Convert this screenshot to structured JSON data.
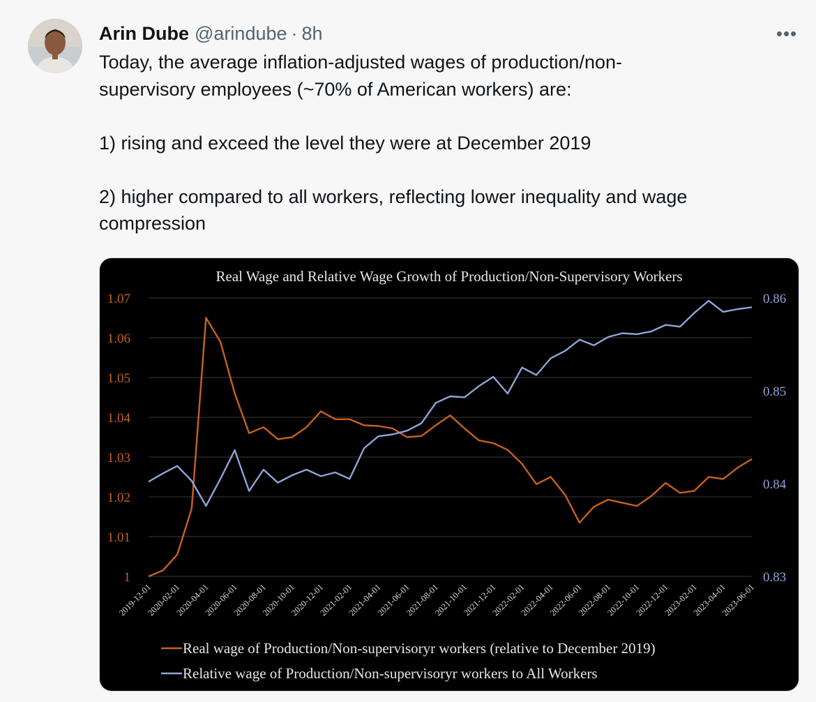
{
  "tweet": {
    "author_name": "Arin Dube",
    "author_handle": "@arindube",
    "separator": "·",
    "time": "8h",
    "more_label": "•••",
    "text_lines": [
      "Today, the average inflation-adjusted wages of production/non-",
      "supervisory employees (~70% of American workers) are:",
      "1) rising and exceed the level they were at December 2019",
      "2) higher compared to all workers, reflecting lower inequality and wage",
      "compression"
    ]
  },
  "colors": {
    "real_wage": "#c8611f",
    "relative_wage": "#8ea5d8",
    "left_axis_text": "#c8611f",
    "right_axis_text": "#8ea5d8"
  },
  "chart_data": {
    "type": "line",
    "title": "Real Wage and Relative Wage Growth of Production/Non-Supervisory Workers",
    "y_left": {
      "min": 1.0,
      "max": 1.07,
      "ticks": [
        "1",
        "1.01",
        "1.02",
        "1.03",
        "1.04",
        "1.05",
        "1.06",
        "1.07"
      ]
    },
    "y_right": {
      "min": 0.83,
      "max": 0.86,
      "ticks": [
        "0.83",
        "0.84",
        "0.85",
        "0.86"
      ]
    },
    "x_tick_labels": [
      "2019-12-01",
      "2020-02-01",
      "2020-04-01",
      "2020-06-01",
      "2020-08-01",
      "2020-10-01",
      "2020-12-01",
      "2021-02-01",
      "2021-04-01",
      "2021-06-01",
      "2021-08-01",
      "2021-10-01",
      "2021-12-01",
      "2022-02-01",
      "2022-04-01",
      "2022-06-01",
      "2022-08-01",
      "2022-10-01",
      "2022-12-01",
      "2023-02-01",
      "2023-04-01",
      "2023-06-01"
    ],
    "series": [
      {
        "name": "Real wage of Production/Non-supervisoryr workers (relative to December 2019)",
        "axis": "left",
        "values": [
          1.0,
          1.0015,
          1.0055,
          1.017,
          1.065,
          1.059,
          1.046,
          1.036,
          1.0375,
          1.0345,
          1.035,
          1.0375,
          1.0415,
          1.0395,
          1.0395,
          1.038,
          1.0378,
          1.0372,
          1.035,
          1.0353,
          1.038,
          1.0405,
          1.0372,
          1.0342,
          1.0335,
          1.0318,
          1.0283,
          1.0232,
          1.025,
          1.0205,
          1.0135,
          1.0175,
          1.0193,
          1.0185,
          1.0177,
          1.0202,
          1.0235,
          1.021,
          1.0215,
          1.025,
          1.0245,
          1.0273,
          1.0295
        ]
      },
      {
        "name": "Relative wage of Production/Non-supervisoryr workers to All Workers",
        "axis": "right",
        "values": [
          0.8402,
          0.8411,
          0.8419,
          0.8403,
          0.8376,
          0.8405,
          0.8436,
          0.8392,
          0.8415,
          0.8401,
          0.8409,
          0.8415,
          0.8408,
          0.8412,
          0.8405,
          0.8438,
          0.8451,
          0.8453,
          0.8457,
          0.8465,
          0.8487,
          0.8494,
          0.8493,
          0.8505,
          0.8515,
          0.8497,
          0.8525,
          0.8517,
          0.8535,
          0.8543,
          0.8555,
          0.8549,
          0.8558,
          0.8562,
          0.8561,
          0.8564,
          0.8571,
          0.8569,
          0.8584,
          0.8597,
          0.8585,
          0.8588,
          0.859
        ]
      }
    ]
  }
}
